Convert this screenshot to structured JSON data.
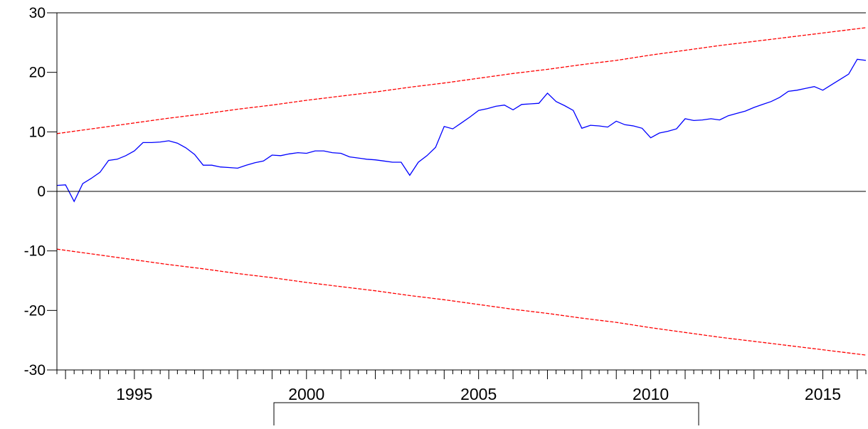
{
  "chart_data": {
    "type": "line",
    "title": "",
    "xlabel": "",
    "ylabel": "",
    "xlim": [
      1992.75,
      2016.25
    ],
    "ylim": [
      -30,
      30
    ],
    "y_ticks": [
      -30,
      -20,
      -10,
      0,
      10,
      20,
      30
    ],
    "y_tick_labels": [
      "-30",
      "-20",
      "-10",
      "0",
      "10",
      "20",
      "30"
    ],
    "x_ticks": [
      1995,
      2000,
      2005,
      2010,
      2015
    ],
    "x_tick_labels": [
      "1995",
      "2000",
      "2005",
      "2010",
      "2015"
    ],
    "zero_line": true,
    "grid": false,
    "legend": "bottom-center",
    "series": [
      {
        "color": "#0000ff",
        "style": "solid",
        "x": [
          1992.75,
          1993.0,
          1993.25,
          1993.5,
          1993.75,
          1994.0,
          1994.25,
          1994.5,
          1994.75,
          1995.0,
          1995.25,
          1995.5,
          1995.75,
          1996.0,
          1996.25,
          1996.5,
          1996.75,
          1997.0,
          1997.25,
          1997.5,
          1997.75,
          1998.0,
          1998.25,
          1998.5,
          1998.75,
          1999.0,
          1999.25,
          1999.5,
          1999.75,
          2000.0,
          2000.25,
          2000.5,
          2000.75,
          2001.0,
          2001.25,
          2001.5,
          2001.75,
          2002.0,
          2002.25,
          2002.5,
          2002.75,
          2003.0,
          2003.25,
          2003.5,
          2003.75,
          2004.0,
          2004.25,
          2004.5,
          2004.75,
          2005.0,
          2005.25,
          2005.5,
          2005.75,
          2006.0,
          2006.25,
          2006.5,
          2006.75,
          2007.0,
          2007.25,
          2007.5,
          2007.75,
          2008.0,
          2008.25,
          2008.5,
          2008.75,
          2009.0,
          2009.25,
          2009.5,
          2009.75,
          2010.0,
          2010.25,
          2010.5,
          2010.75,
          2011.0,
          2011.25,
          2011.5,
          2011.75,
          2012.0,
          2012.25,
          2012.5,
          2012.75,
          2013.0,
          2013.25,
          2013.5,
          2013.75,
          2014.0,
          2014.25,
          2014.5,
          2014.75,
          2015.0,
          2015.25,
          2015.5,
          2015.75,
          2016.0,
          2016.25
        ],
        "values": [
          1.0,
          1.1,
          -1.7,
          1.3,
          2.2,
          3.2,
          5.2,
          5.4,
          6.0,
          6.8,
          8.2,
          8.2,
          8.3,
          8.5,
          8.1,
          7.3,
          6.2,
          4.4,
          4.4,
          4.1,
          4.0,
          3.9,
          4.4,
          4.8,
          5.1,
          6.1,
          6.0,
          6.3,
          6.5,
          6.4,
          6.8,
          6.8,
          6.5,
          6.4,
          5.8,
          5.6,
          5.4,
          5.3,
          5.1,
          4.9,
          4.9,
          2.7,
          4.9,
          6.0,
          7.4,
          10.9,
          10.5,
          11.5,
          12.5,
          13.6,
          13.9,
          14.3,
          14.5,
          13.7,
          14.6,
          14.7,
          14.8,
          16.5,
          15.1,
          14.4,
          13.6,
          10.6,
          11.1,
          11.0,
          10.8,
          11.8,
          11.2,
          11.0,
          10.6,
          9.0,
          9.8,
          10.1,
          10.5,
          12.2,
          11.9,
          12.0,
          12.2,
          12.0,
          12.7,
          13.1,
          13.5,
          14.1,
          14.6,
          15.1,
          15.8,
          16.8,
          17.0,
          17.3,
          17.6,
          17.0,
          17.9,
          18.8,
          19.7,
          22.2,
          22.0
        ]
      },
      {
        "color": "#ff0000",
        "style": "dashed",
        "x": [
          1992.75,
          1994.0,
          1995.0,
          1996.0,
          1997.0,
          1998.0,
          1999.0,
          2000.0,
          2001.0,
          2002.0,
          2003.0,
          2004.0,
          2005.0,
          2006.0,
          2007.0,
          2008.0,
          2009.0,
          2010.0,
          2011.0,
          2012.0,
          2013.0,
          2014.0,
          2015.0,
          2016.25
        ],
        "values": [
          9.7,
          10.7,
          11.5,
          12.3,
          13.0,
          13.8,
          14.5,
          15.3,
          16.0,
          16.7,
          17.5,
          18.2,
          19.0,
          19.8,
          20.5,
          21.3,
          22.0,
          22.9,
          23.7,
          24.5,
          25.2,
          25.9,
          26.6,
          27.5
        ]
      },
      {
        "color": "#ff0000",
        "style": "dashed",
        "x": [
          1992.75,
          1994.0,
          1995.0,
          1996.0,
          1997.0,
          1998.0,
          1999.0,
          2000.0,
          2001.0,
          2002.0,
          2003.0,
          2004.0,
          2005.0,
          2006.0,
          2007.0,
          2008.0,
          2009.0,
          2010.0,
          2011.0,
          2012.0,
          2013.0,
          2014.0,
          2015.0,
          2016.25
        ],
        "values": [
          -9.7,
          -10.7,
          -11.5,
          -12.3,
          -13.0,
          -13.8,
          -14.5,
          -15.3,
          -16.0,
          -16.7,
          -17.5,
          -18.2,
          -19.0,
          -19.8,
          -20.5,
          -21.3,
          -22.0,
          -22.9,
          -23.7,
          -24.5,
          -25.2,
          -25.9,
          -26.6,
          -27.5
        ]
      }
    ]
  }
}
